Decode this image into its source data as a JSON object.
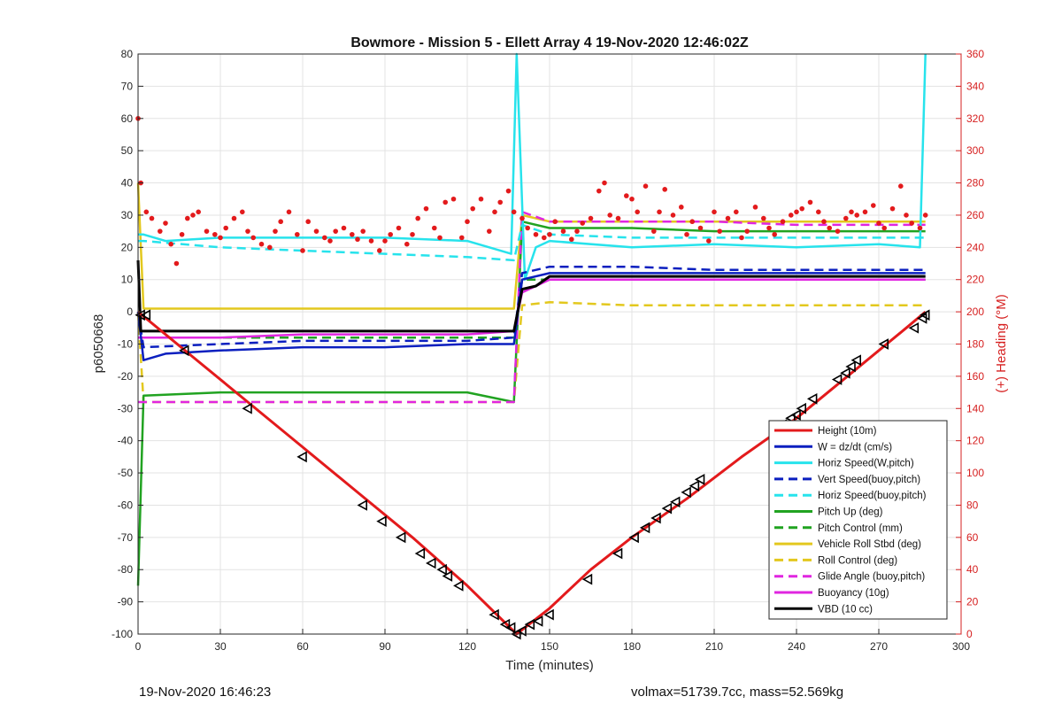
{
  "chart_data": {
    "type": "line",
    "title": "Bowmore - Mission 5 - Ellett Array 4 19-Nov-2020 12:46:02Z",
    "xlabel": "Time (minutes)",
    "ylabel_left": "p6050668",
    "ylabel_right": "(+) Heading (°M)",
    "xlim": [
      0,
      300
    ],
    "ylim_left": [
      -100,
      80
    ],
    "ylim_right": [
      0,
      360
    ],
    "x_ticks": [
      "0",
      "30",
      "60",
      "90",
      "120",
      "150",
      "180",
      "210",
      "240",
      "270",
      "300"
    ],
    "y_ticks_left": [
      "-100",
      "-90",
      "-80",
      "-70",
      "-60",
      "-50",
      "-40",
      "-30",
      "-20",
      "-10",
      "0",
      "10",
      "20",
      "30",
      "40",
      "50",
      "60",
      "70",
      "80"
    ],
    "y_ticks_right": [
      "0",
      "20",
      "40",
      "60",
      "80",
      "100",
      "120",
      "140",
      "160",
      "180",
      "200",
      "220",
      "240",
      "260",
      "280",
      "300",
      "320",
      "340",
      "360"
    ],
    "grid": true,
    "legend_position": "bottom-right",
    "series": [
      {
        "name": "Height (10m)",
        "color": "#e31a1c",
        "dash": "solid",
        "x": [
          0,
          20,
          40,
          60,
          80,
          100,
          120,
          138,
          150,
          165,
          180,
          200,
          220,
          240,
          260,
          280,
          287
        ],
        "y": [
          0,
          -14,
          -28,
          -42,
          -56,
          -70,
          -85,
          -100,
          -92,
          -80,
          -70,
          -58,
          -45,
          -33,
          -19,
          -5,
          0
        ]
      },
      {
        "name": "W = dz/dt (cm/s)",
        "color": "#0b1fbf",
        "dash": "solid",
        "x": [
          0,
          2,
          10,
          30,
          60,
          90,
          120,
          137,
          140,
          150,
          180,
          210,
          240,
          270,
          287
        ],
        "y": [
          0,
          -15,
          -13,
          -12,
          -11,
          -11,
          -10,
          -10,
          10,
          12,
          12,
          12,
          12,
          12,
          12
        ]
      },
      {
        "name": "Horiz Speed(W,pitch)",
        "color": "#27e3ec",
        "dash": "solid",
        "x": [
          0,
          2,
          10,
          30,
          60,
          90,
          120,
          136,
          138,
          141,
          145,
          150,
          180,
          210,
          240,
          270,
          285,
          287
        ],
        "y": [
          24,
          24,
          22,
          23,
          23,
          23,
          22,
          18,
          80,
          10,
          20,
          22,
          20,
          21,
          20,
          21,
          20,
          80
        ]
      },
      {
        "name": "Vert Speed(buoy,pitch)",
        "color": "#0b1fbf",
        "dash": "dashed",
        "x": [
          0,
          2,
          30,
          60,
          90,
          120,
          137,
          140,
          150,
          180,
          210,
          240,
          270,
          287
        ],
        "y": [
          0,
          -11,
          -10,
          -9,
          -9,
          -9,
          -8,
          12,
          14,
          14,
          13,
          13,
          13,
          13
        ]
      },
      {
        "name": "Horiz Speed(buoy,pitch)",
        "color": "#27e3ec",
        "dash": "dashed",
        "x": [
          0,
          2,
          30,
          60,
          90,
          120,
          137,
          140,
          150,
          180,
          210,
          240,
          270,
          287
        ],
        "y": [
          22,
          22,
          20,
          19,
          18,
          17,
          16,
          27,
          24,
          23,
          23,
          23,
          23,
          23
        ]
      },
      {
        "name": "Pitch Up (deg)",
        "color": "#21a321",
        "dash": "solid",
        "x": [
          0,
          2,
          30,
          60,
          90,
          120,
          137,
          140,
          150,
          180,
          210,
          240,
          270,
          287
        ],
        "y": [
          -85,
          -26,
          -25,
          -25,
          -25,
          -25,
          -28,
          28,
          26,
          26,
          25,
          25,
          25,
          25
        ]
      },
      {
        "name": "Pitch Control (mm)",
        "color": "#21a321",
        "dash": "dashed",
        "x": [
          0,
          2,
          30,
          60,
          90,
          120,
          137,
          140,
          150,
          180,
          210,
          240,
          270,
          287
        ],
        "y": [
          -8,
          -8,
          -8,
          -8,
          -8,
          -8,
          -8,
          10,
          10,
          10,
          10,
          10,
          10,
          10
        ]
      },
      {
        "name": "Vehicle Roll Stbd (deg)",
        "color": "#e3c81e",
        "dash": "solid",
        "x": [
          0,
          2,
          30,
          60,
          90,
          120,
          137,
          140,
          150,
          180,
          210,
          240,
          270,
          287
        ],
        "y": [
          40,
          1,
          1,
          1,
          1,
          1,
          1,
          30,
          28,
          28,
          28,
          28,
          28,
          28
        ]
      },
      {
        "name": "Roll Control (deg)",
        "color": "#e3c81e",
        "dash": "dashed",
        "x": [
          0,
          2,
          30,
          60,
          90,
          120,
          137,
          140,
          150,
          180,
          210,
          240,
          270,
          287
        ],
        "y": [
          0,
          -28,
          -28,
          -28,
          -28,
          -28,
          -28,
          2,
          3,
          2,
          2,
          2,
          2,
          2
        ]
      },
      {
        "name": "Glide Angle (buoy,pitch)",
        "color": "#e026e0",
        "dash": "dashed",
        "x": [
          0,
          2,
          30,
          60,
          90,
          120,
          137,
          140,
          150,
          180,
          210,
          240,
          270,
          287
        ],
        "y": [
          -28,
          -28,
          -28,
          -28,
          -28,
          -28,
          -28,
          31,
          28,
          28,
          28,
          27,
          27,
          27
        ]
      },
      {
        "name": "Buoyancy (10g)",
        "color": "#e026e0",
        "dash": "solid",
        "x": [
          0,
          2,
          30,
          60,
          90,
          120,
          137,
          140,
          150,
          180,
          210,
          240,
          270,
          287
        ],
        "y": [
          -8,
          -8,
          -8,
          -7,
          -7,
          -7,
          -6,
          6,
          10,
          10,
          10,
          10,
          10,
          10
        ]
      },
      {
        "name": "VBD (10 cc)",
        "color": "#000000",
        "dash": "solid",
        "x": [
          0,
          1,
          2,
          30,
          60,
          90,
          120,
          137,
          140,
          145,
          150,
          180,
          210,
          240,
          270,
          287
        ],
        "y": [
          16,
          -6,
          -6,
          -6,
          -6,
          -6,
          -6,
          -6,
          7,
          8,
          11,
          11,
          11,
          11,
          11,
          11
        ]
      }
    ],
    "heading_series": {
      "name": "(+) Heading (°M)",
      "color": "#e31a1c",
      "x": [
        0,
        1,
        3,
        5,
        8,
        10,
        12,
        14,
        16,
        18,
        20,
        22,
        25,
        28,
        30,
        32,
        35,
        38,
        40,
        42,
        45,
        48,
        50,
        52,
        55,
        58,
        60,
        62,
        65,
        68,
        70,
        72,
        75,
        78,
        80,
        82,
        85,
        88,
        90,
        92,
        95,
        98,
        100,
        102,
        105,
        108,
        110,
        112,
        115,
        118,
        120,
        122,
        125,
        128,
        130,
        132,
        135,
        137,
        140,
        142,
        145,
        148,
        150,
        152,
        155,
        158,
        160,
        162,
        165,
        168,
        170,
        172,
        175,
        178,
        180,
        182,
        185,
        188,
        190,
        192,
        195,
        198,
        200,
        202,
        205,
        208,
        210,
        212,
        215,
        218,
        220,
        222,
        225,
        228,
        230,
        232,
        235,
        238,
        240,
        242,
        245,
        248,
        250,
        252,
        255,
        258,
        260,
        262,
        265,
        268,
        270,
        272,
        275,
        278,
        280,
        282,
        285,
        287
      ],
      "y": [
        320,
        280,
        262,
        258,
        250,
        255,
        242,
        230,
        248,
        258,
        260,
        262,
        250,
        248,
        246,
        252,
        258,
        262,
        250,
        246,
        242,
        240,
        250,
        256,
        262,
        248,
        238,
        256,
        250,
        246,
        244,
        250,
        252,
        248,
        245,
        250,
        244,
        238,
        244,
        248,
        252,
        242,
        248,
        258,
        264,
        252,
        246,
        268,
        270,
        246,
        256,
        264,
        270,
        250,
        262,
        268,
        275,
        262,
        258,
        252,
        248,
        246,
        248,
        256,
        250,
        245,
        250,
        255,
        258,
        275,
        280,
        260,
        258,
        272,
        270,
        262,
        278,
        250,
        262,
        276,
        260,
        265,
        248,
        256,
        252,
        244,
        262,
        250,
        258,
        262,
        246,
        250,
        265,
        258,
        252,
        248,
        256,
        260,
        262,
        264,
        268,
        262,
        256,
        252,
        250,
        258,
        262,
        260,
        262,
        266,
        255,
        252,
        264,
        278,
        260,
        255,
        252,
        260
      ]
    },
    "markers": {
      "x": [
        1,
        3,
        17,
        40,
        60,
        82,
        89,
        96,
        103,
        107,
        111,
        113,
        117,
        130,
        134,
        136,
        138,
        140,
        143,
        146,
        150,
        164,
        175,
        181,
        185,
        189,
        193,
        196,
        200,
        203,
        205,
        235,
        238,
        240,
        242,
        246,
        255,
        258,
        260,
        262,
        272,
        283,
        286,
        287
      ],
      "y": [
        -1,
        -1,
        -12,
        -30,
        -45,
        -60,
        -65,
        -70,
        -75,
        -78,
        -80,
        -82,
        -85,
        -94,
        -97,
        -98,
        -100,
        -99,
        -97,
        -96,
        -94,
        -83,
        -75,
        -70,
        -67,
        -64,
        -61,
        -59,
        -56,
        -54,
        -52,
        -35,
        -33,
        -32,
        -30,
        -27,
        -21,
        -19,
        -17,
        -15,
        -10,
        -5,
        -2,
        -1
      ]
    }
  },
  "footer": {
    "timestamp": "19-Nov-2020 16:46:23",
    "summary": "volmax=51739.7cc, mass=52.569kg"
  }
}
